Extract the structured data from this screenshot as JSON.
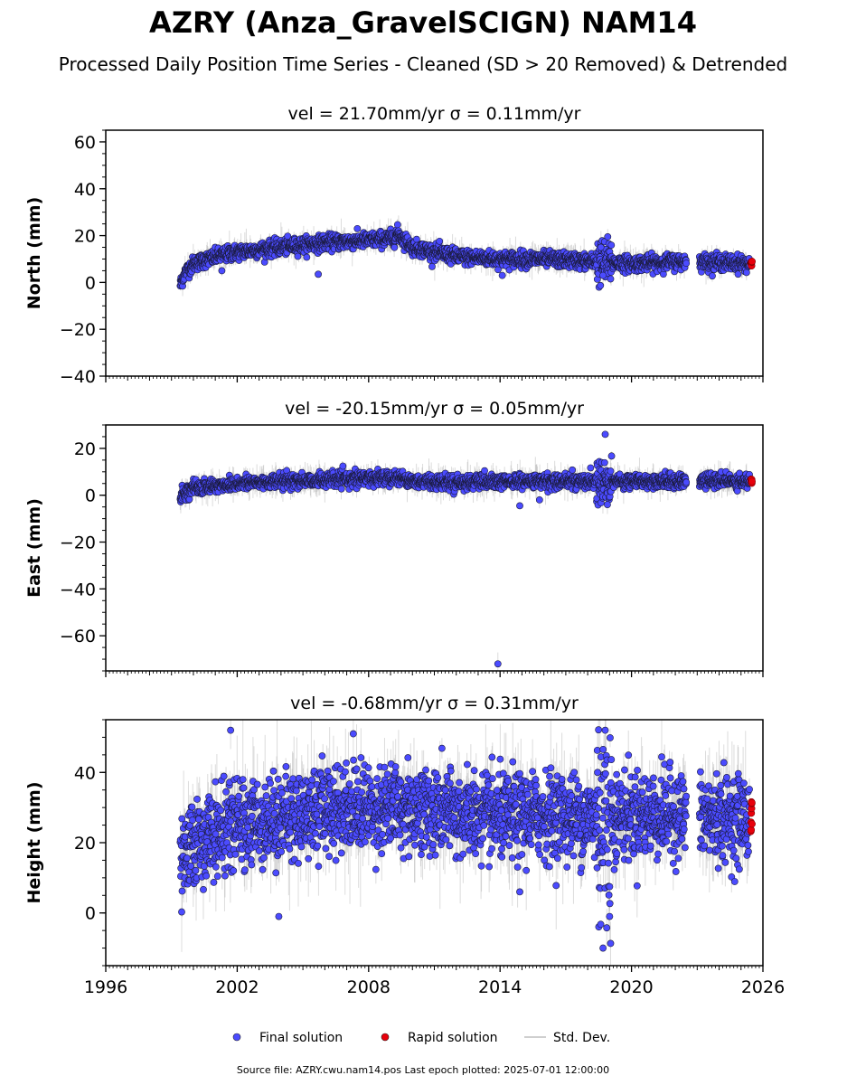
{
  "title": "AZRY (Anza_GravelSCIGN) NAM14",
  "subtitle": "Processed Daily Position Time Series - Cleaned (SD > 20 Removed) & Detrended",
  "footer": "Source file: AZRY.cwu.nam14.pos  Last epoch plotted: 2025-07-01 12:00:00",
  "legend": [
    {
      "label": "Final solution",
      "color": "#4b4bff",
      "marker": "dot"
    },
    {
      "label": "Rapid solution",
      "color": "#e8000b",
      "marker": "dot"
    },
    {
      "label": "Std. Dev.",
      "color": "#cfcfcf",
      "marker": "line"
    }
  ],
  "chart_data": [
    {
      "type": "scatter",
      "title_prefix": "vel = 21.70mm/yr",
      "title_sigma": "σ = 0.11mm/yr",
      "ylabel": "North (mm)",
      "xlim": [
        1996,
        2026
      ],
      "ylim": [
        -40,
        65
      ],
      "yticks": [
        -40,
        -20,
        0,
        20,
        40,
        60
      ],
      "ytick_labels": [
        "−40",
        "−20",
        "0",
        "20",
        "40",
        "60"
      ],
      "final_trend": [
        [
          1999.4,
          -1
        ],
        [
          1999.6,
          4
        ],
        [
          2000.0,
          8
        ],
        [
          2001.0,
          11
        ],
        [
          2002.0,
          13
        ],
        [
          2004.0,
          15
        ],
        [
          2006.0,
          17
        ],
        [
          2008.0,
          18
        ],
        [
          2009.2,
          19
        ],
        [
          2009.3,
          21
        ],
        [
          2010.0,
          15
        ],
        [
          2012.0,
          11
        ],
        [
          2014.0,
          10
        ],
        [
          2016.0,
          10
        ],
        [
          2018.0,
          9
        ],
        [
          2020.0,
          8
        ],
        [
          2022.4,
          9
        ],
        [
          2023.2,
          9
        ],
        [
          2025.4,
          8
        ]
      ],
      "final_scatter": 1.6,
      "gaps": [
        [
          2022.5,
          2023.1
        ]
      ],
      "outliers": [
        [
          2001.3,
          5
        ],
        [
          2005.7,
          3.5
        ],
        [
          2014.1,
          3
        ],
        [
          2018.6,
          15
        ],
        [
          2018.7,
          3
        ]
      ],
      "rapid": {
        "x": [
          2025.45,
          2025.5
        ],
        "y": [
          7,
          9
        ]
      },
      "sd_sigma": 2.5
    },
    {
      "type": "scatter",
      "title_prefix": "vel = -20.15mm/yr",
      "title_sigma": "σ = 0.05mm/yr",
      "ylabel": "East (mm)",
      "xlim": [
        1996,
        2026
      ],
      "ylim": [
        -75,
        30
      ],
      "yticks": [
        -60,
        -40,
        -20,
        0,
        20
      ],
      "ytick_labels": [
        "−60",
        "−40",
        "−20",
        "0",
        "20"
      ],
      "final_trend": [
        [
          1999.4,
          0
        ],
        [
          2000.0,
          3
        ],
        [
          2002.0,
          5
        ],
        [
          2004.0,
          6
        ],
        [
          2006.0,
          6.5
        ],
        [
          2008.0,
          7
        ],
        [
          2009.2,
          8
        ],
        [
          2010.0,
          6
        ],
        [
          2012.0,
          5.5
        ],
        [
          2014.0,
          5.5
        ],
        [
          2016.0,
          6
        ],
        [
          2018.0,
          6
        ],
        [
          2020.0,
          6
        ],
        [
          2022.4,
          6
        ],
        [
          2023.2,
          6
        ],
        [
          2025.4,
          6
        ]
      ],
      "final_scatter": 1.5,
      "gaps": [
        [
          2022.5,
          2023.1
        ]
      ],
      "outliers": [
        [
          2013.9,
          -72
        ],
        [
          2014.9,
          -4.5
        ],
        [
          2015.8,
          -2
        ],
        [
          2018.8,
          26
        ],
        [
          2018.9,
          -4
        ]
      ],
      "rapid": {
        "x": [
          2025.45,
          2025.5
        ],
        "y": [
          5,
          7
        ]
      },
      "sd_sigma": 2.5
    },
    {
      "type": "scatter",
      "title_prefix": "vel = -0.68mm/yr",
      "title_sigma": "σ = 0.31mm/yr",
      "ylabel": "Height (mm)",
      "xlim": [
        1996,
        2026
      ],
      "ylim": [
        -15,
        55
      ],
      "yticks": [
        0,
        20,
        40
      ],
      "ytick_labels": [
        "0",
        "20",
        "40"
      ],
      "final_trend": [
        [
          1999.4,
          12
        ],
        [
          2000.0,
          20
        ],
        [
          2002.0,
          25
        ],
        [
          2004.0,
          27
        ],
        [
          2006.0,
          30
        ],
        [
          2008.0,
          30
        ],
        [
          2009.2,
          30
        ],
        [
          2010.0,
          30
        ],
        [
          2012.0,
          28
        ],
        [
          2014.0,
          27
        ],
        [
          2016.0,
          28
        ],
        [
          2018.0,
          27
        ],
        [
          2020.0,
          28
        ],
        [
          2022.4,
          28
        ],
        [
          2023.2,
          27
        ],
        [
          2025.4,
          27
        ]
      ],
      "final_scatter": 6,
      "gaps": [
        [
          2022.5,
          2023.1
        ]
      ],
      "outliers": [
        [
          2001.7,
          52
        ],
        [
          2003.9,
          -1
        ],
        [
          2007.3,
          51
        ],
        [
          2014.9,
          6
        ],
        [
          2018.8,
          52
        ],
        [
          2018.7,
          -10
        ],
        [
          2019.0,
          -1
        ]
      ],
      "rapid": {
        "x": [
          2025.45,
          2025.5
        ],
        "y": [
          22,
          32
        ]
      },
      "sd_sigma": 6
    }
  ],
  "xticks": [
    1996,
    2002,
    2008,
    2014,
    2020,
    2026
  ],
  "xtick_labels": [
    "1996",
    "2002",
    "2008",
    "2014",
    "2020",
    "2026"
  ]
}
